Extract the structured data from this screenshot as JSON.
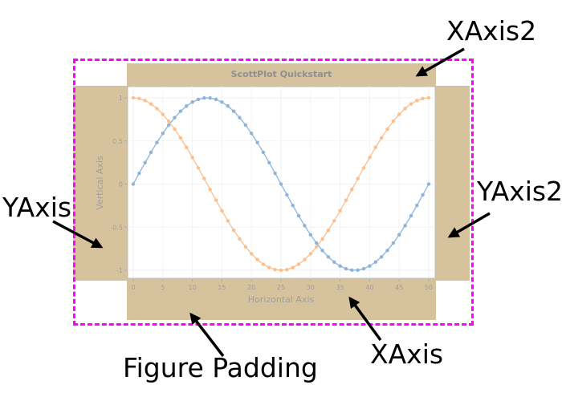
{
  "callouts": {
    "xaxis2": "XAxis2",
    "yaxis2": "YAxis2",
    "yaxis": "YAxis",
    "xaxis": "XAxis",
    "figure_padding": "Figure Padding"
  },
  "colors": {
    "region_fill": "#d7c29e",
    "padding_border": "#ff00ff",
    "series_sin": "#8ab4d9",
    "series_cos": "#fbbf8e",
    "axis_text": "#9e9e9e"
  },
  "chart_data": {
    "type": "scatter",
    "title": "ScottPlot Quickstart",
    "xlabel": "Horizontal Axis",
    "ylabel": "Vertical Axis",
    "xlim": [
      0,
      50
    ],
    "ylim": [
      -1,
      1
    ],
    "xticks": [
      "0",
      "5",
      "10",
      "15",
      "20",
      "25",
      "30",
      "35",
      "40",
      "45",
      "50"
    ],
    "yticks": [
      "1",
      "0.5",
      "0",
      "-0.5",
      "-1"
    ],
    "grid": true,
    "series": [
      {
        "function": "sin(2π·x/50)",
        "x_start": 0,
        "x_end": 50,
        "x_step": 1,
        "color": "#8ab4d9",
        "marker": "circle",
        "connected": true
      },
      {
        "function": "cos(2π·x/50)",
        "x_start": 0,
        "x_end": 50,
        "x_step": 1,
        "color": "#fbbf8e",
        "marker": "circle",
        "connected": true
      }
    ]
  }
}
